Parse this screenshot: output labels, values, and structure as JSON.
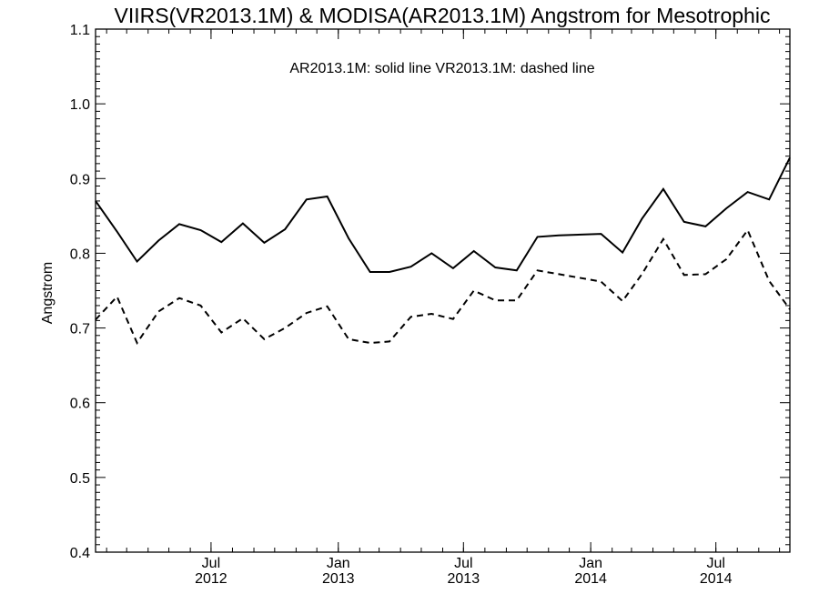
{
  "chart_data": {
    "type": "line",
    "title": "VIIRS(VR2013.1M) & MODISA(AR2013.1M)  Angstrom for Mesotrophic",
    "annotation": "AR2013.1M: solid line   VR2013.1M: dashed line",
    "ylabel": "Angstrom",
    "xlabel": "",
    "ylim": [
      0.4,
      1.1
    ],
    "xlim": [
      "2012-01-16",
      "2014-10-16"
    ],
    "grid": false,
    "yticks": [
      0.4,
      0.5,
      0.6,
      0.7,
      0.8,
      0.9,
      1.0,
      1.1
    ],
    "ytick_labels": [
      "0.4",
      "0.5",
      "0.6",
      "0.7",
      "0.8",
      "0.9",
      "1.0",
      "1.1"
    ],
    "xticks": [
      {
        "date": "2012-07-01",
        "month": "Jul",
        "year": "2012"
      },
      {
        "date": "2013-01-01",
        "month": "Jan",
        "year": "2013"
      },
      {
        "date": "2013-07-01",
        "month": "Jul",
        "year": "2013"
      },
      {
        "date": "2014-01-01",
        "month": "Jan",
        "year": "2014"
      },
      {
        "date": "2014-07-01",
        "month": "Jul",
        "year": "2014"
      }
    ],
    "series": [
      {
        "name": "AR2013.1M",
        "style": "solid",
        "x": [
          "2012-01-16",
          "2012-02-16",
          "2012-03-16",
          "2012-04-16",
          "2012-05-16",
          "2012-06-16",
          "2012-07-16",
          "2012-08-16",
          "2012-09-16",
          "2012-10-16",
          "2012-11-16",
          "2012-12-16",
          "2013-01-16",
          "2013-02-16",
          "2013-03-16",
          "2013-04-16",
          "2013-05-16",
          "2013-06-16",
          "2013-07-16",
          "2013-08-16",
          "2013-09-16",
          "2013-10-16",
          "2013-11-16",
          "2014-01-16",
          "2014-02-16",
          "2014-03-16",
          "2014-04-16",
          "2014-05-16",
          "2014-06-16",
          "2014-07-16",
          "2014-08-16",
          "2014-09-16",
          "2014-10-16"
        ],
        "values": [
          0.87,
          0.829,
          0.789,
          0.817,
          0.839,
          0.831,
          0.815,
          0.84,
          0.814,
          0.832,
          0.872,
          0.876,
          0.82,
          0.775,
          0.775,
          0.782,
          0.8,
          0.78,
          0.803,
          0.781,
          0.777,
          0.822,
          0.824,
          0.826,
          0.801,
          0.846,
          0.886,
          0.842,
          0.836,
          0.86,
          0.882,
          0.872,
          0.928
        ]
      },
      {
        "name": "VR2013.1M",
        "style": "dashed",
        "x": [
          "2012-01-16",
          "2012-02-16",
          "2012-03-16",
          "2012-04-16",
          "2012-05-16",
          "2012-06-16",
          "2012-07-16",
          "2012-08-16",
          "2012-09-16",
          "2012-10-16",
          "2012-11-16",
          "2012-12-16",
          "2013-01-16",
          "2013-02-16",
          "2013-03-16",
          "2013-04-16",
          "2013-05-16",
          "2013-06-16",
          "2013-07-16",
          "2013-08-16",
          "2013-09-16",
          "2013-10-16",
          "2013-11-16",
          "2014-01-16",
          "2014-02-16",
          "2014-03-16",
          "2014-04-16",
          "2014-05-16",
          "2014-06-16",
          "2014-07-16",
          "2014-08-16",
          "2014-09-16",
          "2014-10-16"
        ],
        "values": [
          0.711,
          0.742,
          0.68,
          0.722,
          0.74,
          0.73,
          0.694,
          0.713,
          0.685,
          0.7,
          0.72,
          0.729,
          0.685,
          0.68,
          0.682,
          0.715,
          0.719,
          0.712,
          0.75,
          0.737,
          0.737,
          0.777,
          0.772,
          0.762,
          0.736,
          0.772,
          0.819,
          0.771,
          0.772,
          0.792,
          0.831,
          0.763,
          0.725
        ]
      }
    ]
  }
}
